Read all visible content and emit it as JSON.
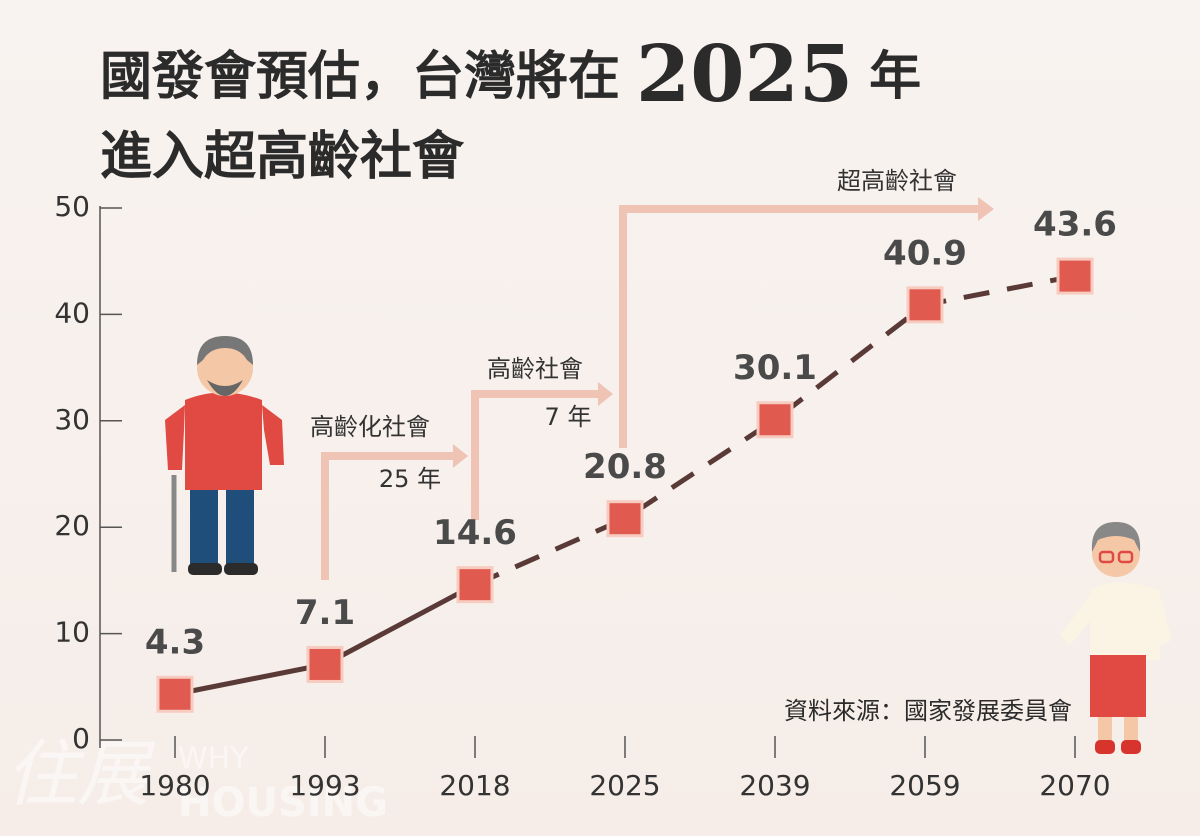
{
  "chart_data": {
    "type": "line",
    "title_parts": [
      "國發會預估，台灣將在",
      "2025",
      "年"
    ],
    "title_line2": "進入超高齡社會",
    "categories": [
      "1980",
      "1993",
      "2018",
      "2025",
      "2039",
      "2059",
      "2070"
    ],
    "series": [
      {
        "color": "#5a3a36",
        "marker_color": "#e05a4f",
        "values": [
          4.3,
          7.1,
          14.6,
          20.8,
          30.1,
          40.9,
          43.6
        ]
      }
    ],
    "ylim": [
      0,
      50
    ],
    "yticks": [
      0,
      10,
      20,
      30,
      40,
      50
    ],
    "annotations": [
      {
        "stage": "高齡化社會",
        "duration": "25 年"
      },
      {
        "stage": "高齡社會",
        "duration": "7 年"
      },
      {
        "stage": "超高齡社會"
      }
    ],
    "source": "資料來源：國家發展委員會",
    "watermark": [
      "住展",
      "WHY",
      "HOUSING"
    ]
  }
}
